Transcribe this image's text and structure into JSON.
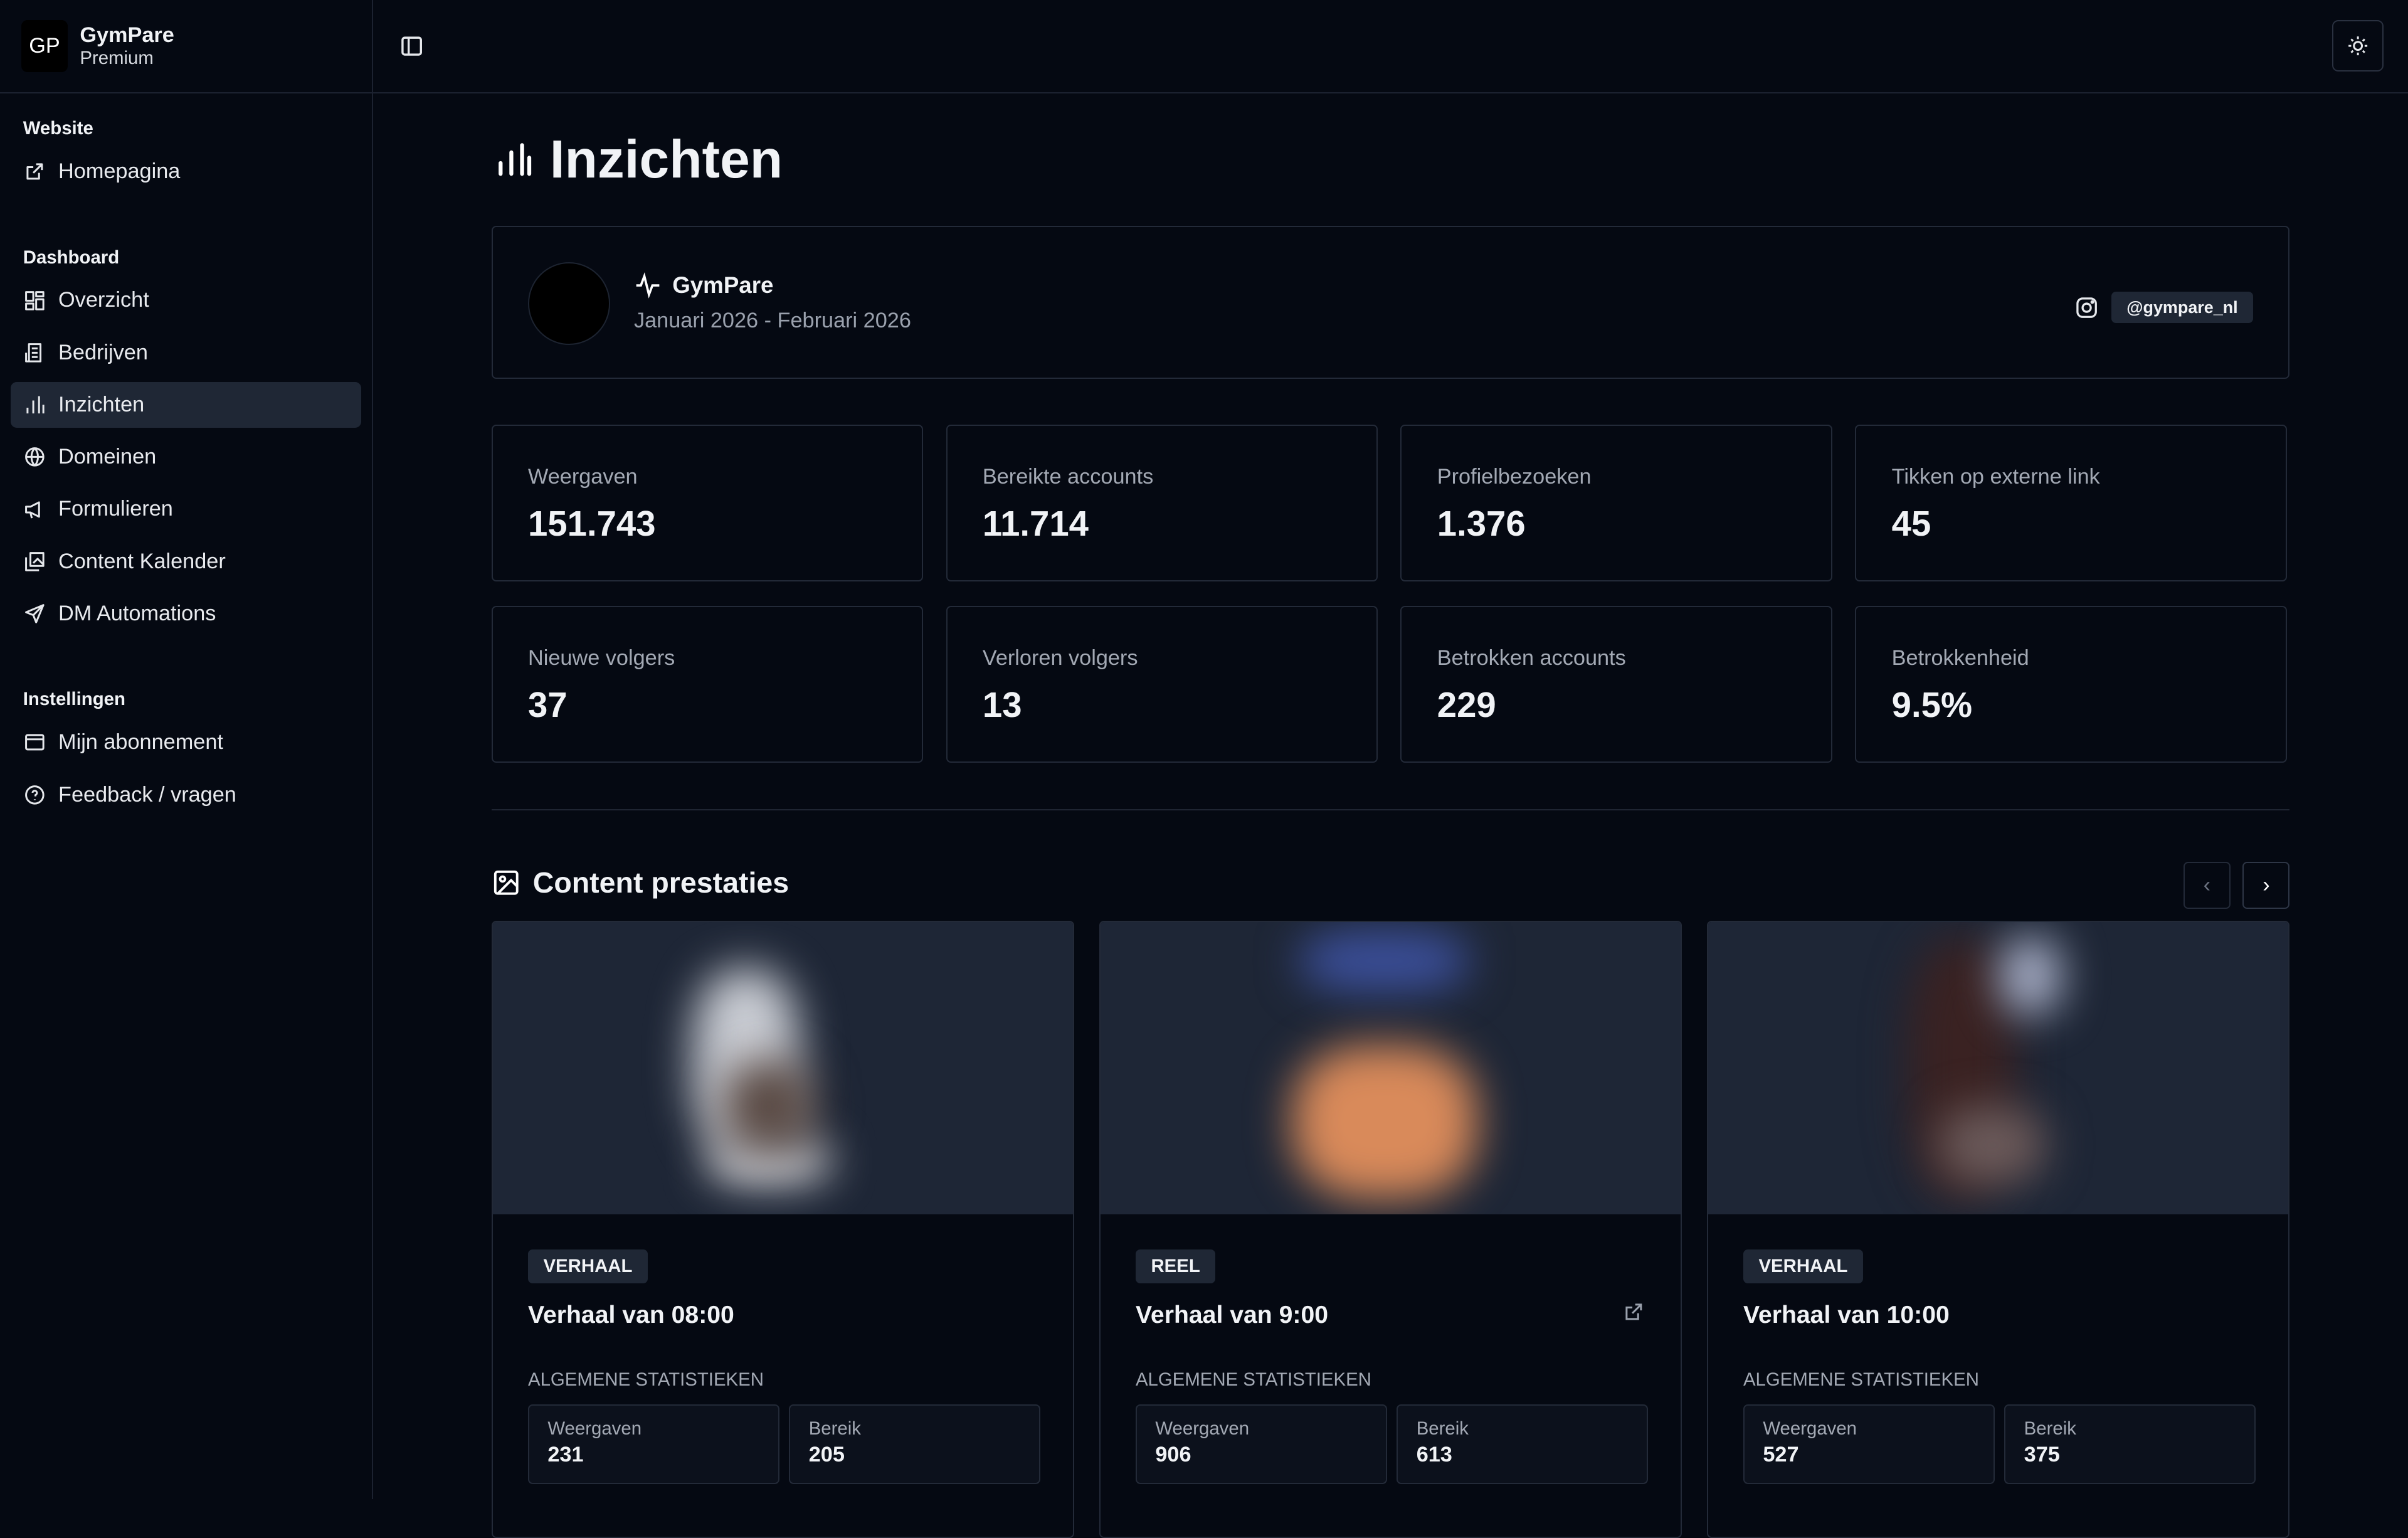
{
  "brand": {
    "logo": "GP",
    "name": "GymPare",
    "plan": "Premium"
  },
  "sidebar": {
    "sections": [
      {
        "title": "Website",
        "items": [
          {
            "label": "Homepagina",
            "icon": "external-link-icon"
          }
        ]
      },
      {
        "title": "Dashboard",
        "items": [
          {
            "label": "Overzicht",
            "icon": "dashboard-icon"
          },
          {
            "label": "Bedrijven",
            "icon": "building-icon"
          },
          {
            "label": "Inzichten",
            "icon": "bar-chart-icon",
            "active": true
          },
          {
            "label": "Domeinen",
            "icon": "globe-icon"
          },
          {
            "label": "Formulieren",
            "icon": "megaphone-icon"
          },
          {
            "label": "Content Kalender",
            "icon": "gallery-icon"
          },
          {
            "label": "DM Automations",
            "icon": "send-icon"
          }
        ]
      },
      {
        "title": "Instellingen",
        "items": [
          {
            "label": "Mijn abonnement",
            "icon": "wallet-icon"
          },
          {
            "label": "Feedback / vragen",
            "icon": "help-circle-icon"
          }
        ]
      }
    ]
  },
  "page": {
    "title": "Inzichten"
  },
  "profile": {
    "name": "GymPare",
    "period": "Januari 2026 - Februari 2026",
    "handle": "@gympare_nl"
  },
  "stats": [
    {
      "label": "Weergaven",
      "value": "151.743"
    },
    {
      "label": "Bereikte accounts",
      "value": "11.714"
    },
    {
      "label": "Profielbezoeken",
      "value": "1.376"
    },
    {
      "label": "Tikken op externe link",
      "value": "45"
    },
    {
      "label": "Nieuwe volgers",
      "value": "37"
    },
    {
      "label": "Verloren volgers",
      "value": "13"
    },
    {
      "label": "Betrokken accounts",
      "value": "229"
    },
    {
      "label": "Betrokkenheid",
      "value": "9.5%"
    }
  ],
  "content": {
    "title": "Content prestaties",
    "section_label": "ALGEMENE STATISTIEKEN",
    "posts": [
      {
        "type": "VERHAAL",
        "title": "Verhaal van 08:00",
        "views_label": "Weergaven",
        "views": "231",
        "reach_label": "Bereik",
        "reach": "205",
        "external": false
      },
      {
        "type": "REEL",
        "title": "Verhaal van 9:00",
        "views_label": "Weergaven",
        "views": "906",
        "reach_label": "Bereik",
        "reach": "613",
        "external": true
      },
      {
        "type": "VERHAAL",
        "title": "Verhaal van 10:00",
        "views_label": "Weergaven",
        "views": "527",
        "reach_label": "Bereik",
        "reach": "375",
        "external": false
      }
    ]
  },
  "colors": {
    "background": "#050912",
    "border": "#232a38",
    "active": "#1f2735"
  }
}
